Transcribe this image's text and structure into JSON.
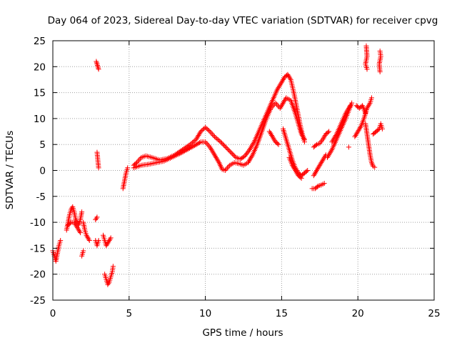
{
  "chart_data": {
    "type": "scatter",
    "title": "Day 064 of 2023, Sidereal Day-to-day VTEC variation (SDTVAR) for receiver cpvg",
    "xlabel": "GPS time / hours",
    "ylabel": "SDTVAR / TECUs",
    "xlim": [
      0,
      25
    ],
    "ylim": [
      -25,
      25
    ],
    "xticks": [
      0,
      5,
      10,
      15,
      20,
      25
    ],
    "yticks": [
      -25,
      -20,
      -15,
      -10,
      -5,
      0,
      5,
      10,
      15,
      20,
      25
    ],
    "grid": true,
    "marker": "plus",
    "color": "#ff0000",
    "series": [
      {
        "name": "SDTVAR",
        "segments": [
          [
            [
              0.0,
              -15.5
            ],
            [
              0.1,
              -16.5
            ],
            [
              0.2,
              -17.5
            ],
            [
              0.3,
              -16.0
            ],
            [
              0.4,
              -14.5
            ],
            [
              0.5,
              -13.5
            ]
          ],
          [
            [
              0.9,
              -11.5
            ],
            [
              1.0,
              -10.0
            ],
            [
              1.1,
              -8.5
            ],
            [
              1.2,
              -7.5
            ],
            [
              1.3,
              -7.0
            ],
            [
              1.4,
              -8.0
            ],
            [
              1.5,
              -9.5
            ],
            [
              1.6,
              -10.0
            ],
            [
              1.7,
              -10.5
            ],
            [
              1.8,
              -9.5
            ],
            [
              1.9,
              -8.0
            ]
          ],
          [
            [
              1.0,
              -10.5
            ],
            [
              1.2,
              -10.0
            ],
            [
              1.4,
              -10.0
            ],
            [
              1.6,
              -11.0
            ],
            [
              1.8,
              -12.0
            ]
          ],
          [
            [
              2.0,
              -10.0
            ],
            [
              2.1,
              -11.5
            ],
            [
              2.2,
              -12.5
            ],
            [
              2.3,
              -13.0
            ],
            [
              2.4,
              -13.5
            ]
          ],
          [
            [
              1.9,
              -16.5
            ],
            [
              2.0,
              -15.5
            ]
          ],
          [
            [
              2.85,
              21.0
            ],
            [
              2.9,
              20.5
            ],
            [
              2.95,
              20.0
            ],
            [
              3.0,
              19.5
            ]
          ],
          [
            [
              2.9,
              3.5
            ],
            [
              2.95,
              2.0
            ],
            [
              3.0,
              0.5
            ]
          ],
          [
            [
              2.8,
              -9.5
            ],
            [
              2.9,
              -9.0
            ]
          ],
          [
            [
              2.8,
              -13.5
            ],
            [
              2.9,
              -14.5
            ],
            [
              3.0,
              -13.5
            ]
          ],
          [
            [
              3.3,
              -12.5
            ],
            [
              3.4,
              -13.5
            ],
            [
              3.5,
              -14.5
            ],
            [
              3.6,
              -14.0
            ],
            [
              3.7,
              -13.5
            ],
            [
              3.8,
              -13.0
            ]
          ],
          [
            [
              3.4,
              -20.0
            ],
            [
              3.5,
              -21.0
            ],
            [
              3.6,
              -22.0
            ],
            [
              3.7,
              -21.5
            ],
            [
              3.8,
              -20.5
            ],
            [
              3.9,
              -19.5
            ],
            [
              3.95,
              -18.5
            ]
          ],
          [
            [
              4.6,
              -3.5
            ],
            [
              4.7,
              -2.0
            ],
            [
              4.8,
              -0.5
            ],
            [
              4.9,
              0.5
            ]
          ],
          [
            [
              5.3,
              1.0
            ],
            [
              5.5,
              1.5
            ],
            [
              5.8,
              2.5
            ],
            [
              6.1,
              2.8
            ],
            [
              6.5,
              2.5
            ],
            [
              7.0,
              2.0
            ],
            [
              7.5,
              2.3
            ],
            [
              8.0,
              3.0
            ],
            [
              8.5,
              4.0
            ],
            [
              9.0,
              5.0
            ],
            [
              9.4,
              6.0
            ],
            [
              9.7,
              7.5
            ],
            [
              10.0,
              8.3
            ],
            [
              10.3,
              7.5
            ],
            [
              10.6,
              6.5
            ],
            [
              11.0,
              5.5
            ],
            [
              11.5,
              4.0
            ],
            [
              12.0,
              2.5
            ],
            [
              12.3,
              2.2
            ],
            [
              12.6,
              2.8
            ],
            [
              12.9,
              4.0
            ],
            [
              13.2,
              5.5
            ],
            [
              13.5,
              7.5
            ],
            [
              13.8,
              9.5
            ],
            [
              14.1,
              11.5
            ],
            [
              14.4,
              13.5
            ],
            [
              14.7,
              15.5
            ],
            [
              15.0,
              17.0
            ],
            [
              15.2,
              18.0
            ],
            [
              15.4,
              18.5
            ],
            [
              15.6,
              17.5
            ],
            [
              15.8,
              15.0
            ],
            [
              16.0,
              12.0
            ],
            [
              16.2,
              9.0
            ],
            [
              16.4,
              6.5
            ],
            [
              16.5,
              5.5
            ]
          ],
          [
            [
              5.3,
              0.5
            ],
            [
              5.8,
              1.0
            ],
            [
              6.3,
              1.2
            ],
            [
              6.8,
              1.5
            ],
            [
              7.3,
              1.8
            ],
            [
              7.8,
              2.5
            ],
            [
              8.3,
              3.2
            ],
            [
              8.8,
              4.0
            ],
            [
              9.3,
              4.8
            ],
            [
              9.7,
              5.5
            ],
            [
              10.0,
              5.5
            ],
            [
              10.3,
              4.5
            ],
            [
              10.6,
              3.0
            ],
            [
              10.9,
              1.5
            ],
            [
              11.1,
              0.2
            ],
            [
              11.3,
              0.0
            ],
            [
              11.6,
              1.0
            ],
            [
              11.9,
              1.5
            ],
            [
              12.2,
              1.3
            ],
            [
              12.5,
              1.0
            ],
            [
              12.8,
              1.5
            ],
            [
              13.1,
              3.0
            ],
            [
              13.4,
              5.0
            ],
            [
              13.7,
              7.5
            ],
            [
              14.0,
              10.0
            ],
            [
              14.3,
              12.0
            ],
            [
              14.6,
              13.0
            ],
            [
              14.9,
              12.0
            ],
            [
              15.1,
              13.0
            ],
            [
              15.3,
              14.0
            ],
            [
              15.6,
              13.5
            ],
            [
              15.9,
              11.0
            ],
            [
              16.1,
              9.0
            ],
            [
              16.3,
              7.0
            ],
            [
              16.5,
              6.0
            ]
          ],
          [
            [
              14.2,
              7.5
            ],
            [
              14.4,
              6.5
            ],
            [
              14.6,
              5.5
            ],
            [
              14.8,
              5.0
            ]
          ],
          [
            [
              15.1,
              8.0
            ],
            [
              15.3,
              6.0
            ],
            [
              15.5,
              4.0
            ],
            [
              15.7,
              2.0
            ],
            [
              15.9,
              0.5
            ],
            [
              16.1,
              -0.5
            ],
            [
              16.3,
              -1.0
            ],
            [
              16.5,
              -0.5
            ],
            [
              16.7,
              0.0
            ]
          ],
          [
            [
              15.5,
              2.5
            ],
            [
              15.7,
              1.0
            ],
            [
              15.9,
              0.0
            ],
            [
              16.1,
              -1.0
            ],
            [
              16.3,
              -1.5
            ]
          ],
          [
            [
              17.1,
              4.5
            ],
            [
              17.3,
              5.0
            ],
            [
              17.5,
              5.2
            ],
            [
              17.7,
              6.0
            ],
            [
              17.9,
              7.0
            ],
            [
              18.1,
              7.5
            ]
          ],
          [
            [
              17.0,
              -3.5
            ],
            [
              17.2,
              -3.5
            ],
            [
              17.4,
              -3.0
            ],
            [
              17.6,
              -2.8
            ],
            [
              17.8,
              -2.5
            ]
          ],
          [
            [
              17.1,
              -1.0
            ],
            [
              17.3,
              0.0
            ],
            [
              17.5,
              1.0
            ],
            [
              17.7,
              2.0
            ],
            [
              17.9,
              3.0
            ]
          ],
          [
            [
              18.0,
              2.5
            ],
            [
              18.3,
              4.0
            ],
            [
              18.6,
              6.0
            ],
            [
              18.9,
              8.0
            ],
            [
              19.2,
              10.0
            ],
            [
              19.4,
              11.5
            ],
            [
              19.6,
              13.0
            ]
          ],
          [
            [
              18.3,
              5.5
            ],
            [
              18.6,
              7.0
            ],
            [
              18.9,
              9.0
            ],
            [
              19.2,
              11.0
            ],
            [
              19.5,
              12.5
            ]
          ],
          [
            [
              19.4,
              4.5
            ]
          ],
          [
            [
              19.8,
              6.5
            ],
            [
              20.0,
              7.5
            ],
            [
              20.2,
              8.5
            ],
            [
              20.4,
              10.0
            ],
            [
              20.6,
              12.0
            ],
            [
              20.8,
              13.0
            ],
            [
              20.9,
              14.0
            ]
          ],
          [
            [
              19.9,
              12.5
            ],
            [
              20.1,
              12.0
            ],
            [
              20.3,
              12.5
            ],
            [
              20.5,
              11.0
            ]
          ],
          [
            [
              20.5,
              9.0
            ],
            [
              20.6,
              7.0
            ],
            [
              20.7,
              5.0
            ],
            [
              20.8,
              3.0
            ],
            [
              20.9,
              1.5
            ],
            [
              21.0,
              0.8
            ],
            [
              21.1,
              0.6
            ]
          ],
          [
            [
              20.55,
              24.0
            ],
            [
              20.6,
              22.0
            ],
            [
              20.5,
              20.5
            ],
            [
              20.6,
              19.5
            ]
          ],
          [
            [
              21.0,
              7.0
            ],
            [
              21.2,
              7.5
            ],
            [
              21.4,
              8.0
            ],
            [
              21.5,
              9.0
            ],
            [
              21.6,
              8.0
            ]
          ],
          [
            [
              21.45,
              23.0
            ],
            [
              21.5,
              22.0
            ],
            [
              21.4,
              20.5
            ],
            [
              21.45,
              19.0
            ]
          ]
        ]
      }
    ]
  }
}
